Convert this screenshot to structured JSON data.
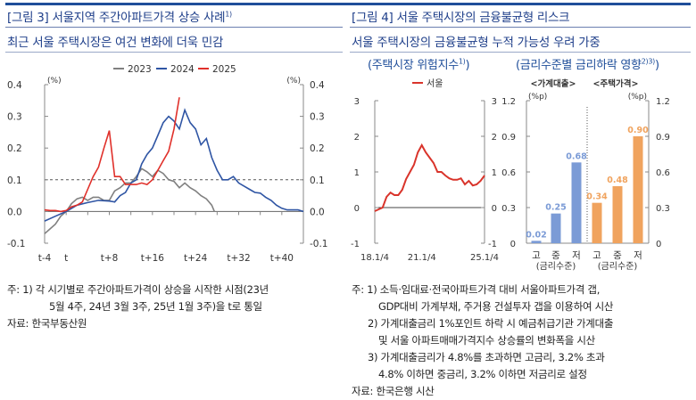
{
  "left_panel": {
    "figure_label": "[그림 3] 서울지역 주간아파트가격 상승 사례",
    "figure_sup": "1)",
    "headline": "최근 서울 주택시장은 여건 변화에 더욱 민감",
    "notes": [
      "주: 1) 각 시기별로 주간아파트가격이 상승을 시작한 시점(23년",
      "5월 4주, 24년 3월 3주, 25년 1월 3주)을 t로 통일"
    ],
    "source": "자료: 한국부동산원"
  },
  "right_panel": {
    "figure_label": "[그림 4] 서울 주택시장의 금융불균형 리스크",
    "headline": "서울 주택시장의 금융불균형 누적 가능성 우려 가중",
    "sub1": "(주택시장 위험지수",
    "sub1_sup": "1)",
    "sub2": "(금리수준별 금리하락 영향",
    "sub2_sup": "2)3)",
    "notes": [
      "주: 1) 소득·임대료·전국아파트가격 대비 서울아파트가격 갭,",
      "GDP대비 가계부채, 주거용 건설투자 갭을 이용하여 시산",
      "2) 가계대출금리 1%포인트 하락 시 예금취급기관 가계대출",
      "및 서울 아파트매매가격지수 상승률의 변화폭을 시산",
      "3) 가계대출금리가 4.8%를 초과하면 고금리, 3.2% 초과",
      "4.8% 이하면 중금리, 3.2% 이하면 저금리로 설정"
    ],
    "source": "자료: 한국은행 시산"
  },
  "chart_data": [
    {
      "type": "line",
      "unit_left": "(%)",
      "unit_right": "(%)",
      "ylim": [
        -0.1,
        0.4
      ],
      "yticks": [
        "0.4",
        "0.3",
        "0.2",
        "0.1",
        "0.0",
        "-0.1"
      ],
      "xlim": [
        -4,
        44
      ],
      "xticks": [
        {
          "x": -4,
          "label": "t-4"
        },
        {
          "x": 0,
          "label": "t"
        },
        {
          "x": 8,
          "label": "t+8"
        },
        {
          "x": 16,
          "label": "t+16"
        },
        {
          "x": 24,
          "label": "t+24"
        },
        {
          "x": 32,
          "label": "t+32"
        },
        {
          "x": 40,
          "label": "t+40"
        }
      ],
      "reference_line": 0.1,
      "legend_position": "top",
      "series": [
        {
          "name": "2023",
          "color": "#808080",
          "x": [
            -4,
            -3,
            -2,
            -1,
            0,
            1,
            2,
            3,
            4,
            5,
            6,
            7,
            8,
            9,
            10,
            11,
            12,
            13,
            14,
            15,
            16,
            17,
            18,
            19,
            20,
            21,
            22,
            23,
            24,
            25,
            26,
            27,
            27.5
          ],
          "y": [
            -0.07,
            -0.055,
            -0.04,
            -0.015,
            0.0,
            0.025,
            0.04,
            0.045,
            0.035,
            0.045,
            0.045,
            0.035,
            0.035,
            0.065,
            0.075,
            0.09,
            0.09,
            0.11,
            0.135,
            0.125,
            0.11,
            0.13,
            0.12,
            0.1,
            0.095,
            0.075,
            0.09,
            0.075,
            0.065,
            0.05,
            0.04,
            0.02,
            0.0
          ]
        },
        {
          "name": "2024",
          "color": "#2f55a4",
          "x": [
            -4,
            -2,
            0,
            2,
            4,
            6,
            8,
            9,
            10,
            11,
            12,
            13,
            14,
            15,
            16,
            17,
            18,
            19,
            20,
            21,
            22,
            23,
            24,
            25,
            26,
            27,
            28,
            29,
            30,
            31,
            32,
            33,
            34,
            35,
            36,
            37,
            38,
            39,
            40,
            41,
            42,
            43,
            44
          ],
          "y": [
            -0.03,
            -0.015,
            0.0,
            0.02,
            0.028,
            0.035,
            0.033,
            0.03,
            0.05,
            0.06,
            0.09,
            0.1,
            0.15,
            0.18,
            0.2,
            0.24,
            0.28,
            0.3,
            0.285,
            0.26,
            0.32,
            0.28,
            0.26,
            0.21,
            0.23,
            0.17,
            0.13,
            0.1,
            0.1,
            0.11,
            0.09,
            0.08,
            0.07,
            0.06,
            0.058,
            0.045,
            0.035,
            0.02,
            0.01,
            0.005,
            0.005,
            0.005,
            0.0
          ]
        },
        {
          "name": "2025",
          "color": "#e0302a",
          "x": [
            -4,
            -3,
            -2,
            -1,
            0,
            1,
            2,
            3,
            4,
            5,
            6,
            7,
            8,
            9,
            10,
            11,
            12,
            13,
            14,
            15,
            16,
            17,
            18,
            19,
            20,
            21
          ],
          "y": [
            0.005,
            0.003,
            0.003,
            0.0,
            0.003,
            0.015,
            0.02,
            0.03,
            0.07,
            0.11,
            0.14,
            0.2,
            0.255,
            0.11,
            0.11,
            0.085,
            0.085,
            0.085,
            0.09,
            0.085,
            0.1,
            0.13,
            0.16,
            0.19,
            0.26,
            0.36
          ]
        }
      ]
    },
    {
      "type": "line",
      "ylim": [
        -1,
        3
      ],
      "yticks": [
        "3",
        "2",
        "1",
        "0",
        "-1"
      ],
      "xticks": [
        "18.1/4",
        "21.1/4",
        "25.1/4"
      ],
      "legend_position": "top",
      "series": [
        {
          "name": "서울",
          "color": "#d9342b",
          "x": [
            "18Q1",
            "18Q2",
            "18Q3",
            "18Q4",
            "19Q1",
            "19Q2",
            "19Q3",
            "19Q4",
            "20Q1",
            "20Q2",
            "20Q3",
            "20Q4",
            "21Q1",
            "21Q2",
            "21Q3",
            "21Q4",
            "22Q1",
            "22Q2",
            "22Q3",
            "22Q4",
            "23Q1",
            "23Q2",
            "23Q3",
            "23Q4",
            "24Q1",
            "24Q2",
            "24Q3",
            "24Q4",
            "25Q1"
          ],
          "y": [
            -0.1,
            -0.05,
            0.0,
            0.3,
            0.42,
            0.35,
            0.35,
            0.5,
            0.8,
            1.0,
            1.2,
            1.55,
            1.75,
            1.55,
            1.4,
            1.25,
            1.0,
            1.0,
            0.9,
            0.82,
            0.78,
            0.78,
            0.82,
            0.65,
            0.75,
            0.62,
            0.65,
            0.75,
            0.9
          ]
        }
      ]
    },
    {
      "type": "bar",
      "unit_left": "(%p)",
      "unit_right": "(%p)",
      "ylim": [
        0,
        1.2
      ],
      "yticks": [
        "1.2",
        "0.9",
        "0.6",
        "0.3",
        "0"
      ],
      "groups": [
        {
          "name": "<가계대출>",
          "color": "#7b9bd6",
          "categories": [
            "고",
            "중",
            "저"
          ],
          "values": [
            0.02,
            0.25,
            0.68
          ],
          "labels": [
            "0.02",
            "0.25",
            "0.68"
          ]
        },
        {
          "name": "<주택가격>",
          "color": "#f0a35e",
          "categories": [
            "고",
            "중",
            "저"
          ],
          "values": [
            0.34,
            0.48,
            0.9
          ],
          "labels": [
            "0.34",
            "0.48",
            "0.90"
          ]
        }
      ],
      "xlabel": "(금리수준)"
    }
  ]
}
